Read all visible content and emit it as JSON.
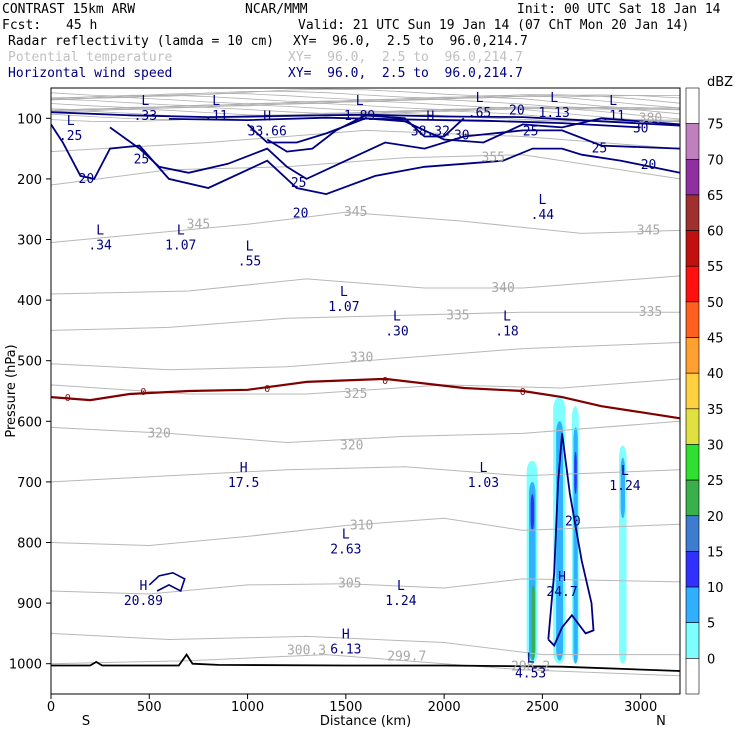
{
  "header": {
    "model": "CONTRAST 15km ARW",
    "org": "NCAR/MMM",
    "init": "Init: 00 UTC Sat 18 Jan 14",
    "fcst_label": "Fcst:",
    "fcst_value": "45 h",
    "valid": "Valid: 21 UTC Sun 19 Jan 14 (07 ChT Mon 20 Jan 14)",
    "fields": [
      {
        "name": "Radar reflectivity (lamda = 10 cm)",
        "xy": "XY=  96.0,  2.5 to  96.0,214.7",
        "color": "#000000"
      },
      {
        "name": "Potential temperature",
        "xy": "XY=  96.0,  2.5 to  96.0,214.7",
        "color": "#c0c0c0"
      },
      {
        "name": "Horizontal wind speed",
        "xy": "XY=  96.0,  2.5 to  96.0,214.7",
        "color": "#000080"
      }
    ]
  },
  "chart_data": {
    "type": "cross-section",
    "xlabel": "Distance (km)",
    "ylabel": "Pressure (hPa)",
    "xlim": [
      0,
      3200
    ],
    "ylim": [
      1050,
      50
    ],
    "x_ticks": [
      0,
      500,
      1000,
      1500,
      2000,
      2500,
      3000
    ],
    "y_ticks": [
      100,
      200,
      300,
      400,
      500,
      600,
      700,
      800,
      900,
      1000
    ],
    "x_ends": {
      "left": "S",
      "right": "N"
    },
    "colorbar": {
      "unit": "dBZ",
      "levels": [
        0,
        5,
        10,
        15,
        20,
        25,
        30,
        35,
        40,
        45,
        50,
        55,
        60,
        65,
        70,
        75
      ],
      "colors": [
        "#ffffff",
        "#7fffff",
        "#30b0ff",
        "#3030ff",
        "#3e7cd0",
        "#3ab04a",
        "#30e030",
        "#e0e040",
        "#ffd040",
        "#ffa030",
        "#ff6020",
        "#ff1010",
        "#c01010",
        "#a03030",
        "#9030a0",
        "#c080c0"
      ]
    },
    "theta_labels": [
      {
        "text": "380",
        "x": 3050,
        "p": 100
      },
      {
        "text": "355",
        "x": 2250,
        "p": 165
      },
      {
        "text": "345",
        "x": 750,
        "p": 275
      },
      {
        "text": "345",
        "x": 1550,
        "p": 255
      },
      {
        "text": "345",
        "x": 3040,
        "p": 285
      },
      {
        "text": "340",
        "x": 2300,
        "p": 380
      },
      {
        "text": "335",
        "x": 2070,
        "p": 425
      },
      {
        "text": "335",
        "x": 3050,
        "p": 420
      },
      {
        "text": "330",
        "x": 1580,
        "p": 495
      },
      {
        "text": "325",
        "x": 1550,
        "p": 555
      },
      {
        "text": "320",
        "x": 550,
        "p": 620
      },
      {
        "text": "320",
        "x": 1530,
        "p": 640
      },
      {
        "text": "310",
        "x": 1580,
        "p": 772
      },
      {
        "text": "305",
        "x": 1520,
        "p": 868
      },
      {
        "text": "300.3",
        "x": 1300,
        "p": 978
      },
      {
        "text": "299.7",
        "x": 1810,
        "p": 988
      },
      {
        "text": "298.2",
        "x": 2440,
        "p": 1005
      }
    ],
    "wind_labels": [
      {
        "text": "20",
        "x": 180,
        "p": 200
      },
      {
        "text": "25",
        "x": 460,
        "p": 168
      },
      {
        "text": "25",
        "x": 1260,
        "p": 207
      },
      {
        "text": "20",
        "x": 1270,
        "p": 257
      },
      {
        "text": "30",
        "x": 2090,
        "p": 128
      },
      {
        "text": "25",
        "x": 2440,
        "p": 122
      },
      {
        "text": "20",
        "x": 2370,
        "p": 87
      },
      {
        "text": "25",
        "x": 2790,
        "p": 150
      },
      {
        "text": "30",
        "x": 3000,
        "p": 117
      },
      {
        "text": "20",
        "x": 3040,
        "p": 177
      },
      {
        "text": "20",
        "x": 2655,
        "p": 765
      }
    ],
    "freezing_labels": [
      {
        "text": "0",
        "x": 85,
        "p": 560
      },
      {
        "text": "0",
        "x": 470,
        "p": 550
      },
      {
        "text": "0",
        "x": 1100,
        "p": 545
      },
      {
        "text": "0",
        "x": 1700,
        "p": 532
      },
      {
        "text": "0",
        "x": 2400,
        "p": 550
      }
    ],
    "extrema": [
      {
        "mark": "L",
        "value": ".33",
        "x": 480,
        "p": 85
      },
      {
        "mark": "L",
        "value": ".11",
        "x": 840,
        "p": 85
      },
      {
        "mark": "L",
        "value": ".25",
        "x": 100,
        "p": 118
      },
      {
        "mark": "H",
        "value": "33.66",
        "x": 1100,
        "p": 110
      },
      {
        "mark": "L",
        "value": "1.89",
        "x": 1570,
        "p": 85
      },
      {
        "mark": "H",
        "value": "38.32",
        "x": 1930,
        "p": 110
      },
      {
        "mark": "L",
        "value": ".65",
        "x": 2180,
        "p": 80
      },
      {
        "mark": "L",
        "value": "1.13",
        "x": 2560,
        "p": 80
      },
      {
        "mark": "L",
        "value": ".11",
        "x": 2860,
        "p": 85
      },
      {
        "mark": "L",
        "value": ".34",
        "x": 250,
        "p": 298
      },
      {
        "mark": "L",
        "value": "1.07",
        "x": 660,
        "p": 298
      },
      {
        "mark": "L",
        "value": ".55",
        "x": 1010,
        "p": 325
      },
      {
        "mark": "L",
        "value": ".44",
        "x": 2500,
        "p": 248
      },
      {
        "mark": "L",
        "value": "1.07",
        "x": 1490,
        "p": 400
      },
      {
        "mark": "L",
        "value": ".30",
        "x": 1760,
        "p": 440
      },
      {
        "mark": "L",
        "value": ".18",
        "x": 2320,
        "p": 440
      },
      {
        "mark": "H",
        "value": "17.5",
        "x": 980,
        "p": 690
      },
      {
        "mark": "L",
        "value": "1.03",
        "x": 2200,
        "p": 690
      },
      {
        "mark": "L",
        "value": "1.24",
        "x": 2920,
        "p": 695
      },
      {
        "mark": "L",
        "value": "2.63",
        "x": 1500,
        "p": 800
      },
      {
        "mark": "H",
        "value": "24.7",
        "x": 2600,
        "p": 870
      },
      {
        "mark": "H",
        "value": "20.89",
        "x": 470,
        "p": 885
      },
      {
        "mark": "L",
        "value": "1.24",
        "x": 1780,
        "p": 885
      },
      {
        "mark": "H",
        "value": "6.13",
        "x": 1500,
        "p": 965
      },
      {
        "mark": "L",
        "value": "4.53",
        "x": 2440,
        "p": 1005
      }
    ]
  }
}
